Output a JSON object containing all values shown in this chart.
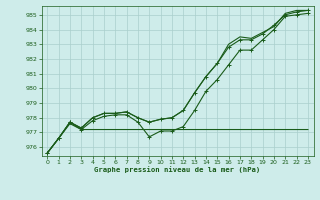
{
  "xlabel": "Graphe pression niveau de la mer (hPa)",
  "ylim": [
    975.4,
    985.6
  ],
  "xlim": [
    -0.5,
    23.5
  ],
  "yticks": [
    976,
    977,
    978,
    979,
    980,
    981,
    982,
    983,
    984,
    985
  ],
  "xticks": [
    0,
    1,
    2,
    3,
    4,
    5,
    6,
    7,
    8,
    9,
    10,
    11,
    12,
    13,
    14,
    15,
    16,
    17,
    18,
    19,
    20,
    21,
    22,
    23
  ],
  "bg_color": "#ceecea",
  "grid_color": "#aacfcc",
  "line_color": "#1a5c1a",
  "line1_y": [
    975.6,
    976.6,
    977.6,
    977.2,
    977.2,
    977.2,
    977.2,
    977.2,
    977.2,
    977.2,
    977.2,
    977.2,
    977.2,
    977.2,
    977.2,
    977.2,
    977.2,
    977.2,
    977.2,
    977.2,
    977.2,
    977.2,
    977.2,
    977.2
  ],
  "line2_y": [
    975.6,
    976.6,
    977.7,
    977.2,
    977.8,
    978.1,
    978.2,
    978.2,
    977.7,
    976.7,
    977.1,
    977.1,
    977.4,
    978.5,
    979.8,
    980.6,
    981.6,
    982.6,
    982.6,
    983.3,
    984.0,
    984.9,
    985.0,
    985.1
  ],
  "line3_y": [
    975.6,
    976.6,
    977.7,
    977.3,
    978.0,
    978.3,
    978.3,
    978.4,
    978.0,
    977.7,
    977.9,
    978.0,
    978.5,
    979.7,
    980.8,
    981.7,
    982.8,
    983.3,
    983.3,
    983.7,
    984.3,
    985.0,
    985.2,
    985.3
  ],
  "line4_y": [
    975.6,
    976.6,
    977.7,
    977.3,
    978.0,
    978.3,
    978.3,
    978.4,
    978.0,
    977.7,
    977.9,
    978.0,
    978.5,
    979.7,
    980.8,
    981.7,
    983.0,
    983.5,
    983.4,
    983.8,
    984.2,
    985.1,
    985.3,
    985.3
  ]
}
